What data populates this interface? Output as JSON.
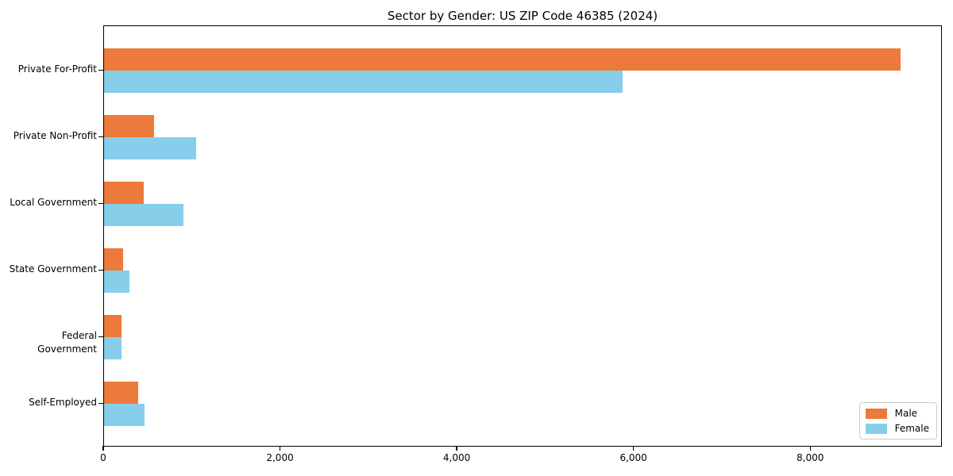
{
  "figure": {
    "background": "#ffffff",
    "frame_color": "#000000"
  },
  "chart_data": {
    "type": "bar",
    "orientation": "horizontal",
    "title": "Sector by Gender: US ZIP Code 46385 (2024)",
    "categories": [
      "Private For-Profit",
      "Private Non-Profit",
      "Local Government",
      "State Government",
      "Federal Government",
      "Self-Employed"
    ],
    "series": [
      {
        "name": "Male",
        "color": "#EC7A3A",
        "values": [
          9030,
          570,
          450,
          215,
          195,
          385
        ]
      },
      {
        "name": "Female",
        "color": "#87CEEB",
        "values": [
          5880,
          1040,
          900,
          290,
          200,
          460
        ]
      }
    ],
    "xlabel": "",
    "ylabel": "",
    "xlim": [
      0,
      9490
    ],
    "xticks": [
      0,
      2000,
      4000,
      6000,
      8000
    ],
    "xtick_labels": [
      "0",
      "2,000",
      "4,000",
      "6,000",
      "8,000"
    ],
    "grid": false,
    "legend_position": "lower right"
  }
}
